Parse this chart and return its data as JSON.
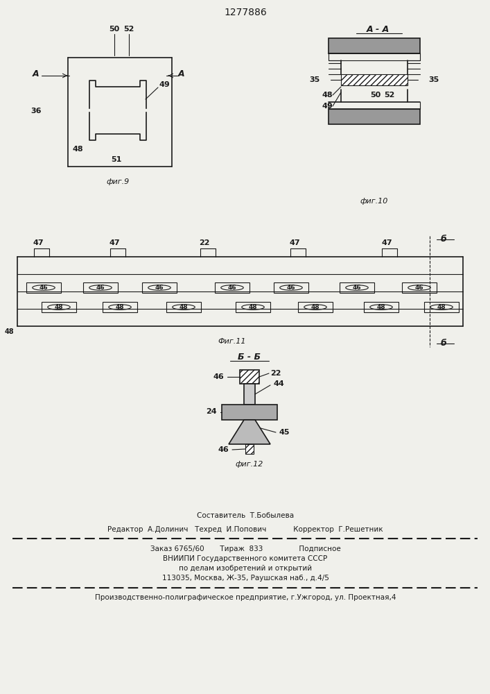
{
  "patent_number": "1277886",
  "background_color": "#f0f0eb",
  "line_color": "#1a1a1a",
  "fig9_label": "фиг.9",
  "fig10_label": "фиг.10",
  "fig11_label": "Фиг.11",
  "fig12_label": "фиг.12",
  "section_label_AA": "А - А",
  "section_label_BB": "Б - Б",
  "footer_composer": "Составитель  Т.Бобылева",
  "footer_editor": "Редактор  А.Долинич   Техред  И.Попович            Корректор  Г.Решетник",
  "footer_order": "Заказ 6765/60       Тираж  833                Подписное",
  "footer_institute": "ВНИИПИ Государственного комитета СССР",
  "footer_dept": "по делам изобретений и открытий",
  "footer_address": "113035, Москва, Ж-35, Раушская наб., д.4/5",
  "footer_plant": "Производственно-полиграфическое предприятие, г.Ужгород, ул. Проектная,4"
}
